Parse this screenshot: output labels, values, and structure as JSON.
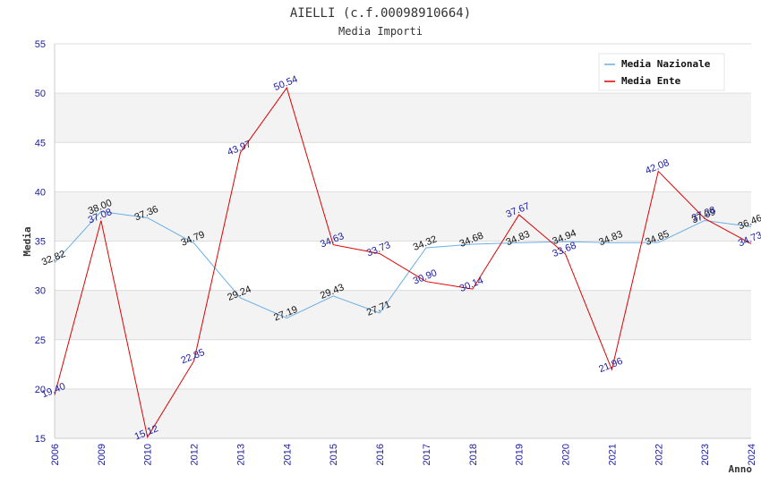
{
  "chart_data": {
    "type": "line",
    "title": "AIELLI (c.f.00098910664)",
    "subtitle": "Media Importi",
    "xlabel": "Anno",
    "ylabel": "Media",
    "ylim": [
      15,
      55
    ],
    "yticks": [
      "15",
      "20",
      "25",
      "30",
      "35",
      "40",
      "45",
      "50",
      "55"
    ],
    "categories": [
      "2006",
      "2009",
      "2010",
      "2012",
      "2013",
      "2014",
      "2015",
      "2016",
      "2017",
      "2018",
      "2019",
      "2020",
      "2021",
      "2022",
      "2023",
      "2024"
    ],
    "series": [
      {
        "name": "Media Nazionale",
        "color": "#6aaee6",
        "values": [
          32.82,
          38.0,
          37.36,
          34.79,
          29.24,
          27.19,
          29.43,
          27.71,
          34.32,
          34.68,
          34.83,
          34.94,
          34.83,
          34.85,
          37.09,
          36.46
        ],
        "labels": [
          "32.82",
          "38.00",
          "37.36",
          "34.79",
          "29.24",
          "27.19",
          "29.43",
          "27.71",
          "34.32",
          "34.68",
          "34.83",
          "34.94",
          "34.83",
          "34.85",
          "37.09",
          "36.46"
        ]
      },
      {
        "name": "Media Ente",
        "color": "#e00000",
        "values": [
          19.4,
          37.08,
          15.12,
          22.85,
          43.97,
          50.54,
          34.63,
          33.73,
          30.9,
          30.14,
          37.67,
          33.68,
          21.96,
          42.08,
          37.28,
          34.73
        ],
        "labels": [
          "19.40",
          "37.08",
          "15.12",
          "22.85",
          "43.97",
          "50.54",
          "34.63",
          "33.73",
          "30.90",
          "30.14",
          "37.67",
          "33.68",
          "21.96",
          "42.08",
          "37.28",
          "34.73"
        ]
      }
    ],
    "legend_position": "top-right",
    "grid": true
  }
}
